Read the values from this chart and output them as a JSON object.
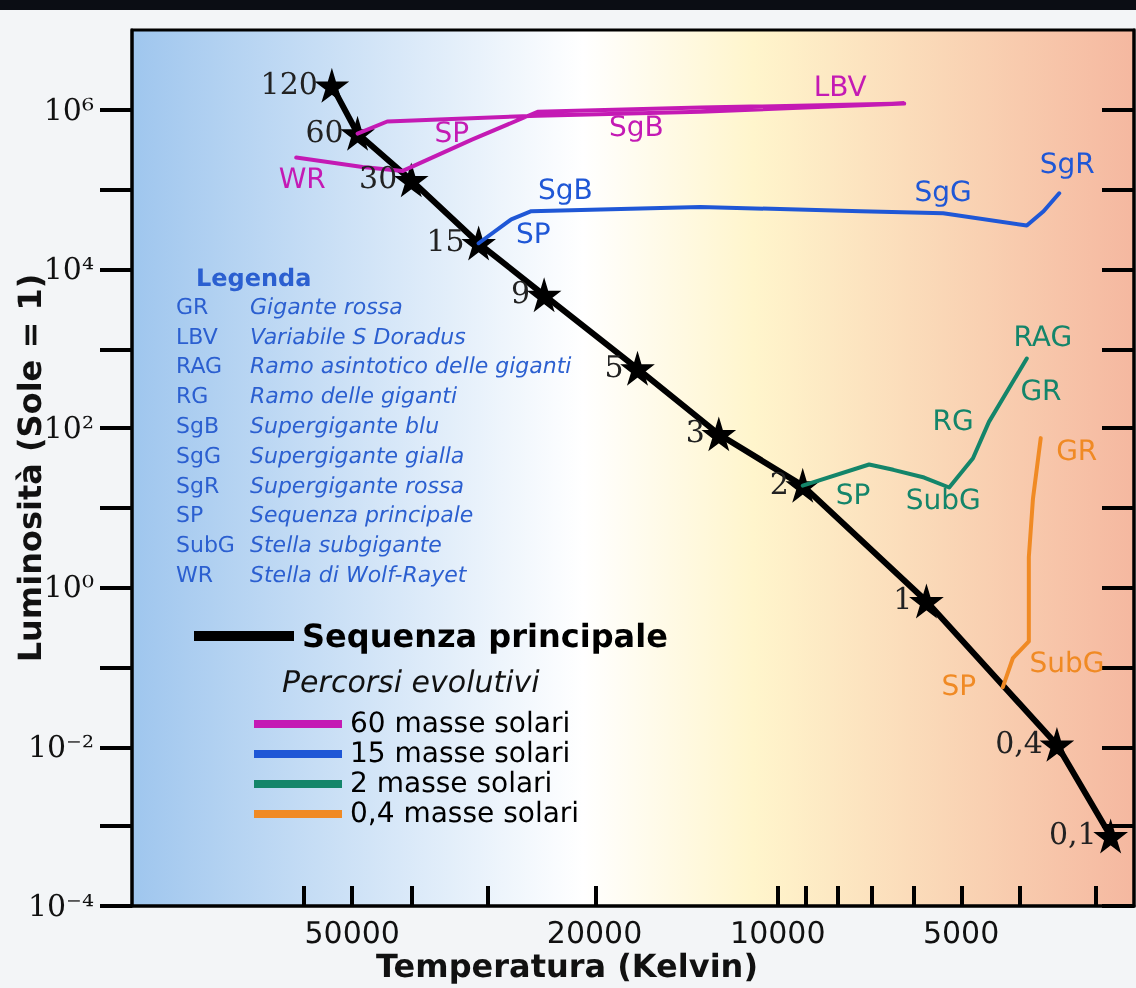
{
  "chart_data": {
    "type": "line",
    "xlabel": "Temperatura (Kelvin)",
    "ylabel": "Luminosità (Sole = 1)",
    "log": "xy",
    "legend": "bottom left",
    "legend_title": "Percorsi evolutivi",
    "grid": false,
    "xlim": [
      115000,
      2600
    ],
    "xticks": [
      {
        "value": 60000,
        "label": null
      },
      50000,
      {
        "value": 40000,
        "label": null
      },
      {
        "value": 30000,
        "label": null
      },
      20000,
      10000,
      {
        "value": 9000,
        "label": null
      },
      {
        "value": 8000,
        "label": null
      },
      {
        "value": 7000,
        "label": null
      },
      {
        "value": 6000,
        "label": null
      },
      5000,
      {
        "value": 4000,
        "label": null
      },
      {
        "value": 3000,
        "label": null
      }
    ],
    "ylim": [
      0.0001,
      10000000
    ],
    "yticks": [
      {
        "value": 0.0001,
        "label": "10⁻⁴"
      },
      {
        "value": 0.001,
        "label": null
      },
      {
        "value": 0.01,
        "label": "10⁻²"
      },
      {
        "value": 0.1,
        "label": null
      },
      {
        "value": 1,
        "label": "10⁰"
      },
      {
        "value": 10,
        "label": null
      },
      {
        "value": 100,
        "label": "10²"
      },
      {
        "value": 1000,
        "label": null
      },
      {
        "value": 10000,
        "label": "10⁴"
      },
      {
        "value": 100000,
        "label": null
      },
      {
        "value": 1000000,
        "label": "10⁶"
      }
    ],
    "series": [
      {
        "name": "Sequenza principale",
        "color": "#000000",
        "marker": "star",
        "x": [
          54000,
          49000,
          40000,
          31000,
          24200,
          17000,
          12500,
          9100,
          5700,
          3480,
          2840
        ],
        "values": [
          2000000,
          500000,
          130000,
          21000,
          4700,
          560,
          84,
          19,
          0.67,
          0.0106,
          0.00075
        ]
      },
      {
        "name": "60 masse solari",
        "color": "#c41ab4",
        "marker": "none",
        "x": [
          49000,
          43800,
          24800,
          13400,
          6200,
          13400,
          24800,
          31800,
          41300,
          48100,
          61800
        ],
        "values": [
          500000,
          710000,
          840000,
          940000,
          1190000,
          1060000,
          940000,
          420000,
          170000,
          190000,
          250000
        ]
      },
      {
        "name": "15 masse solari",
        "color": "#1f57d6",
        "marker": "none",
        "x": [
          31000,
          27400,
          25400,
          13400,
          7300,
          5350,
          3900,
          3660,
          3450
        ],
        "values": [
          21000,
          42000,
          53000,
          60000,
          53000,
          50000,
          35000,
          53000,
          89000
        ]
      },
      {
        "name": "2 masse solari",
        "color": "#14856a",
        "marker": "none",
        "x": [
          9100,
          7080,
          6460,
          5750,
          5230,
          4780,
          4500,
          3900
        ],
        "values": [
          19,
          35,
          30,
          24,
          18,
          42,
          120,
          750
        ]
      },
      {
        "name": "0,4 masse solari",
        "color": "#f08a24",
        "marker": "none",
        "x": [
          4270,
          4110,
          3870,
          3870,
          3810,
          3700
        ],
        "values": [
          0.056,
          0.13,
          0.21,
          2.4,
          13,
          75
        ]
      }
    ],
    "annotations": [
      {
        "text": "120",
        "x": 54000,
        "y": 2000000
      },
      {
        "text": "60",
        "x": 49000,
        "y": 500000
      },
      {
        "text": "30",
        "x": 40000,
        "y": 130000
      },
      {
        "text": "15",
        "x": 31000,
        "y": 21000
      },
      {
        "text": "9",
        "x": 24200,
        "y": 4700
      },
      {
        "text": "5",
        "x": 17000,
        "y": 560
      },
      {
        "text": "3",
        "x": 12500,
        "y": 84
      },
      {
        "text": "2",
        "x": 9100,
        "y": 19
      },
      {
        "text": "1",
        "x": 5700,
        "y": 0.67
      },
      {
        "text": "0,4",
        "x": 3480,
        "y": 0.0106
      },
      {
        "text": "0,1",
        "x": 2840,
        "y": 0.00075
      },
      {
        "text": "LBV",
        "x": 6200,
        "y": 1190000
      },
      {
        "text": "SgB",
        "x": 13400,
        "y": 940000
      },
      {
        "text": "SP",
        "x": 31800,
        "y": 420000
      },
      {
        "text": "WR",
        "x": 61800,
        "y": 250000
      },
      {
        "text": "SgB",
        "x": 25400,
        "y": 53000
      },
      {
        "text": "SP",
        "x": 27400,
        "y": 42000
      },
      {
        "text": "SgG",
        "x": 5350,
        "y": 50000
      },
      {
        "text": "SgR",
        "x": 3450,
        "y": 89000
      },
      {
        "text": "RAG",
        "x": 3900,
        "y": 750
      },
      {
        "text": "GR",
        "x": 4500,
        "y": 120
      },
      {
        "text": "RG",
        "x": 4780,
        "y": 42
      },
      {
        "text": "SP",
        "x": 7080,
        "y": 35
      },
      {
        "text": "SubG",
        "x": 5230,
        "y": 18
      },
      {
        "text": "GR",
        "x": 3700,
        "y": 75
      },
      {
        "text": "SubG",
        "x": 4110,
        "y": 0.13
      },
      {
        "text": "SP",
        "x": 4270,
        "y": 0.056
      },
      "Legenda",
      "GR Gigante rossa",
      "LBV Variabile S Doradus",
      "RAG Ramo asintotico delle giganti",
      "RG Ramo delle giganti",
      "SgB Supergigante blu",
      "SgG Supergigante gialla",
      "SgR Supergigante rossa",
      "SP Sequenza principale",
      "SubG Stella subgigante",
      "WR Stella di Wolf-Rayet"
    ]
  }
}
